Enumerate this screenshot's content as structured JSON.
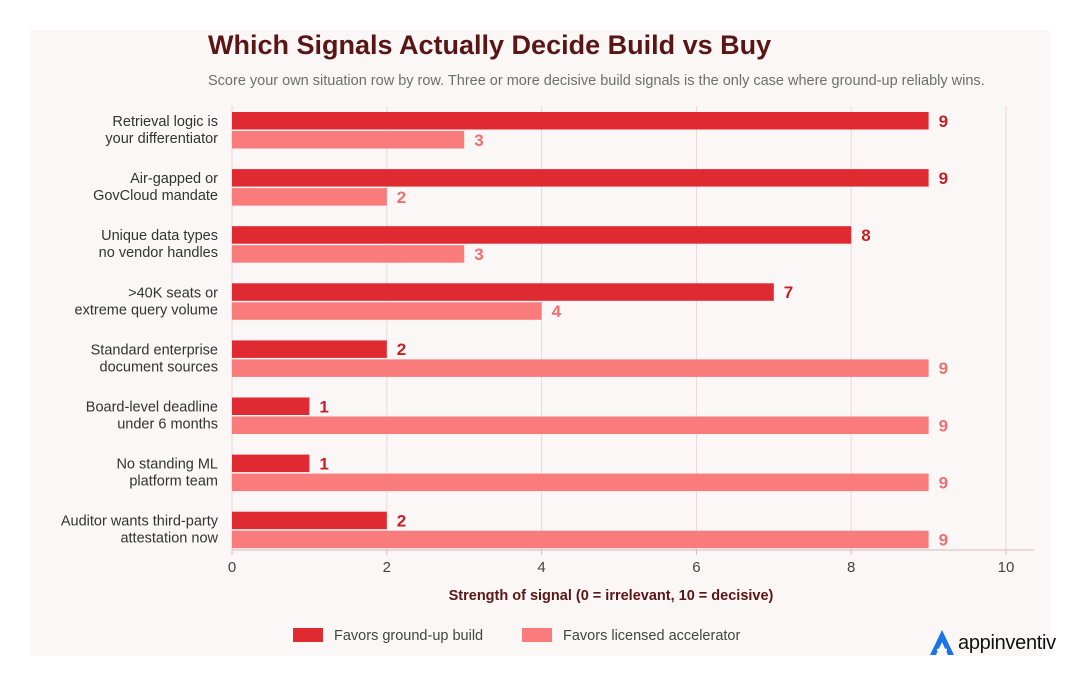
{
  "chart_data": {
    "type": "bar",
    "orientation": "horizontal",
    "title": "Which Signals Actually Decide Build vs Buy",
    "subtitle": "Score your own situation row by row. Three or more decisive build signals is the only case where ground-up reliably wins.",
    "xlabel": "Strength of signal  (0 = irrelevant, 10 = decisive)",
    "xlim": [
      0,
      10
    ],
    "xticks": [
      "0",
      "2",
      "4",
      "6",
      "8",
      "10"
    ],
    "grid": true,
    "legend_position": "bottom",
    "categories": [
      [
        "Retrieval logic is",
        "your differentiator"
      ],
      [
        "Air-gapped or",
        "GovCloud mandate"
      ],
      [
        "Unique data types",
        "no vendor handles"
      ],
      [
        ">40K seats or",
        "extreme query volume"
      ],
      [
        "Standard enterprise",
        "document sources"
      ],
      [
        "Board-level deadline",
        "under 6 months"
      ],
      [
        "No standing ML",
        "platform team"
      ],
      [
        "Auditor wants third-party",
        "attestation now"
      ]
    ],
    "series": [
      {
        "name": "Favors ground-up build",
        "color": "#e02a32",
        "values": [
          9,
          9,
          8,
          7,
          2,
          1,
          1,
          2
        ],
        "labels": [
          "9",
          "9",
          "8",
          "7",
          "2",
          "1",
          "1",
          "2"
        ]
      },
      {
        "name": "Favors licensed accelerator",
        "color": "#f97b7b",
        "values": [
          3,
          2,
          3,
          4,
          9,
          9,
          9,
          9
        ],
        "labels": [
          "3",
          "2",
          "3",
          "4",
          "9",
          "9",
          "9",
          "9"
        ]
      }
    ],
    "value_label_colors": [
      "#c61f25",
      "#f06e6e"
    ]
  },
  "brand": {
    "name": "appinventiv",
    "icon": "appinventiv-logo-icon",
    "color": "#1a73e8"
  }
}
